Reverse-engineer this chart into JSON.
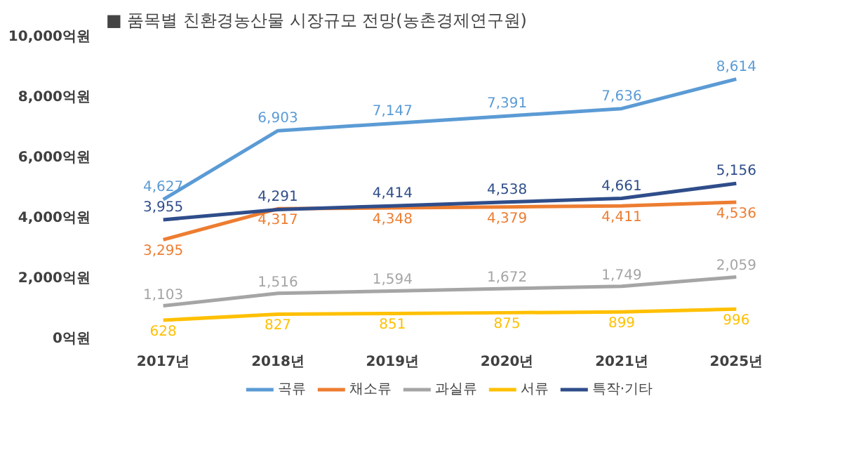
{
  "chart_data": {
    "type": "line",
    "title": "■ 품목별 친환경농산물 시장규모 전망(농촌경제연구원)",
    "categories": [
      "2017년",
      "2018년",
      "2019년",
      "2020년",
      "2021년",
      "2025년"
    ],
    "series": [
      {
        "name": "곡류",
        "color": "#5b9bd5",
        "values": [
          4627,
          6903,
          7147,
          7391,
          7636,
          8614
        ],
        "value_labels": [
          "4,627",
          "6,903",
          "7,147",
          "7,391",
          "7,636",
          "8,614"
        ]
      },
      {
        "name": "채소류",
        "color": "#ed7d31",
        "values": [
          3295,
          4317,
          4348,
          4379,
          4411,
          4536
        ],
        "value_labels": [
          "3,295",
          "4,317",
          "4,348",
          "4,379",
          "4,411",
          "4,536"
        ]
      },
      {
        "name": "과실류",
        "color": "#a5a5a5",
        "values": [
          1103,
          1516,
          1594,
          1672,
          1749,
          2059
        ],
        "value_labels": [
          "1,103",
          "1,516",
          "1,594",
          "1,672",
          "1,749",
          "2,059"
        ]
      },
      {
        "name": "서류",
        "color": "#ffc000",
        "values": [
          628,
          827,
          851,
          875,
          899,
          996
        ],
        "value_labels": [
          "628",
          "827",
          "851",
          "875",
          "899",
          "996"
        ]
      },
      {
        "name": "특작·기타",
        "color": "#2f4d8a",
        "values": [
          3955,
          4291,
          4414,
          4538,
          4661,
          5156
        ],
        "value_labels": [
          "3,955",
          "4,291",
          "4,414",
          "4,538",
          "4,661",
          "5,156"
        ]
      }
    ],
    "ylim": [
      0,
      10000
    ],
    "yticks": [
      {
        "value": 0,
        "label": "0억원"
      },
      {
        "value": 2000,
        "label": "2,000억원"
      },
      {
        "value": 4000,
        "label": "4,000억원"
      },
      {
        "value": 6000,
        "label": "6,000억원"
      },
      {
        "value": 8000,
        "label": "8,000억원"
      },
      {
        "value": 10000,
        "label": "10,000억원"
      }
    ],
    "legend": "bottom",
    "line_style": "solid"
  }
}
